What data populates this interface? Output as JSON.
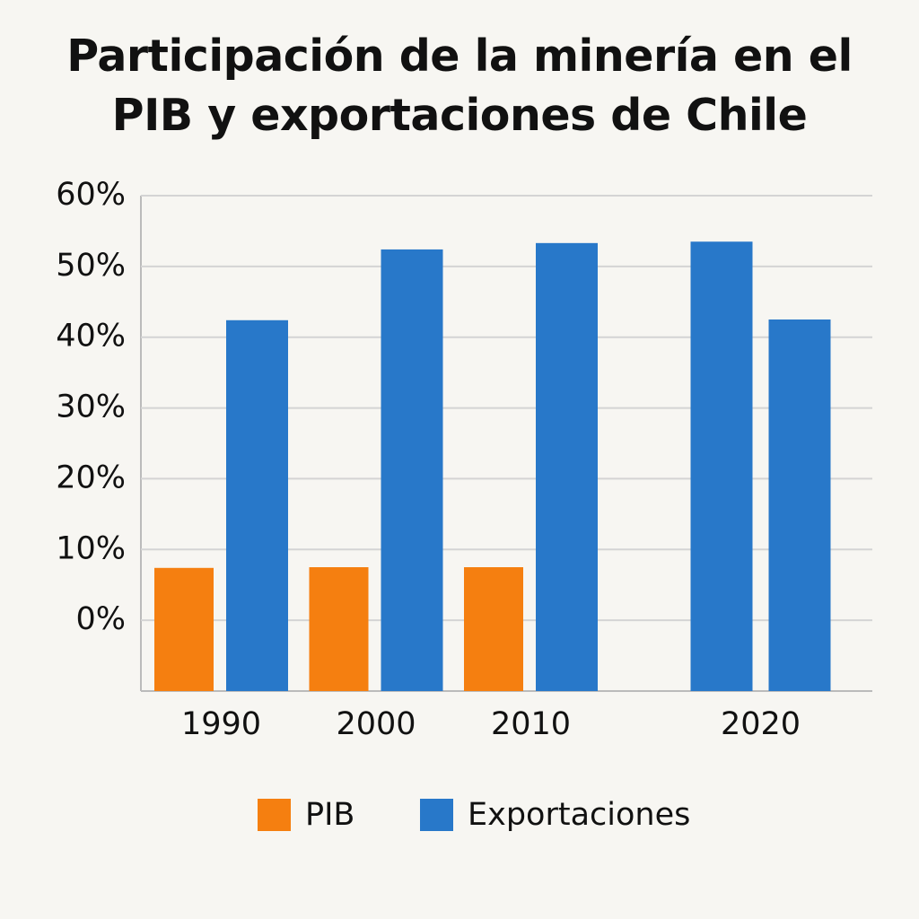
{
  "chart_data": {
    "type": "bar",
    "title": "Participación de la minería en el PIB y exportaciones de Chile",
    "categories": [
      "1990",
      "2000",
      "2010",
      "2020",
      null
    ],
    "series": [
      {
        "name": "PIB",
        "color": "#f57f10",
        "values": [
          7.4,
          7.5,
          7.5,
          null,
          null
        ]
      },
      {
        "name": "Exportaciones",
        "color": "#2878c9",
        "values": [
          42.4,
          52.4,
          53.3,
          53.5,
          42.5
        ]
      }
    ],
    "ylim": [
      -10,
      60
    ],
    "yticks": [
      {
        "value": 0,
        "label": "0%"
      },
      {
        "value": 10,
        "label": "10%"
      },
      {
        "value": 20,
        "label": "20%"
      },
      {
        "value": 30,
        "label": "30%"
      },
      {
        "value": 40,
        "label": "40%"
      },
      {
        "value": 50,
        "label": "50%"
      },
      {
        "value": 60,
        "label": "60%"
      }
    ],
    "grid": true
  }
}
